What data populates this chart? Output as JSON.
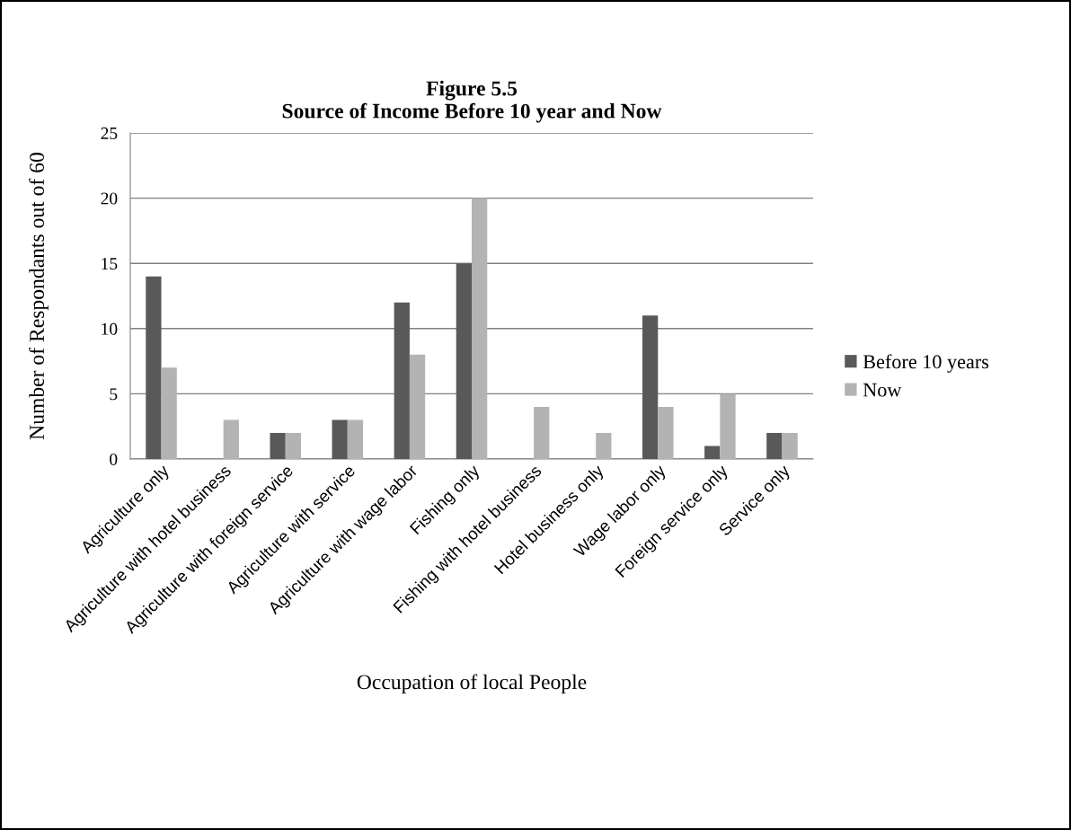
{
  "chart_data": {
    "type": "bar",
    "title": "Figure 5.5\nSource of Income Before 10 year and Now",
    "xlabel": "Occupation of local People",
    "ylabel": "Number of Respondants out of 60",
    "categories": [
      "Agriculture only",
      "Agriculture with hotel business",
      "Agriculture with foreign service",
      "Agriculture with service",
      "Agriculture with wage labor",
      "Fishing only",
      "Fishing with hotel business",
      "Hotel business only",
      "Wage labor only",
      "Foreign service only",
      "Service only"
    ],
    "series": [
      {
        "name": "Before 10 years",
        "color": "#595959",
        "values": [
          14,
          0,
          2,
          3,
          12,
          15,
          0,
          0,
          11,
          1,
          2
        ]
      },
      {
        "name": "Now",
        "color": "#b3b3b3",
        "values": [
          7,
          3,
          2,
          3,
          8,
          20,
          4,
          2,
          4,
          5,
          2
        ]
      }
    ],
    "ylim": [
      0,
      25
    ],
    "yticks": [
      0,
      5,
      10,
      15,
      20,
      25
    ],
    "grid": "y",
    "legend": "right"
  }
}
